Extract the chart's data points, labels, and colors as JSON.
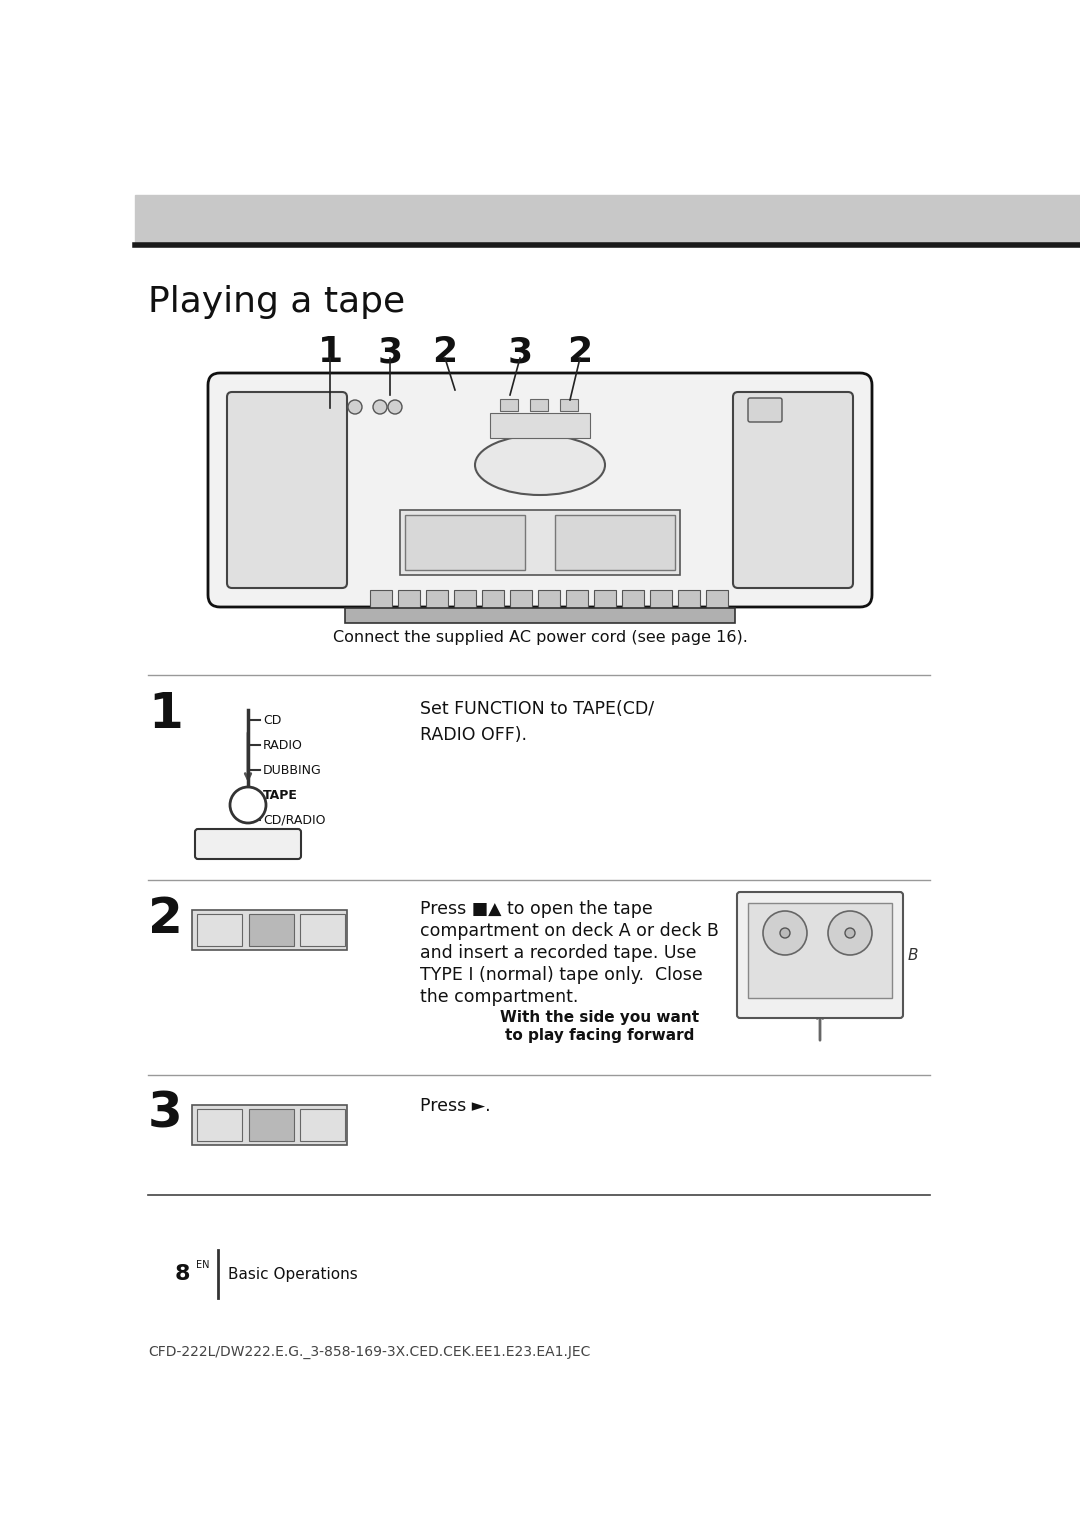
{
  "bg_color": "#ffffff",
  "page_width": 10.8,
  "page_height": 15.28,
  "title": "Playing a tape",
  "connect_text": "Connect the supplied AC power cord (see page 16).",
  "step1_text": "Set FUNCTION to TAPE(CD/\nRADIO OFF).",
  "step2_text_line1": "Press ■▲ to open the tape",
  "step2_text_line2": "compartment on deck A or deck B",
  "step2_text_line3": "and insert a recorded tape. Use",
  "step2_text_line4": "TYPE I (normal) tape only.  Close",
  "step2_text_line5": "the compartment.",
  "step2_bold1": "With the side you want",
  "step2_bold2": "to play facing forward",
  "step3_text": "Press ►.",
  "footer_section": "Basic Operations",
  "footer_model": "CFD-222L/DW222.E.G._3-858-169-3X.CED.CEK.EE1.E23.EA1.JEC"
}
